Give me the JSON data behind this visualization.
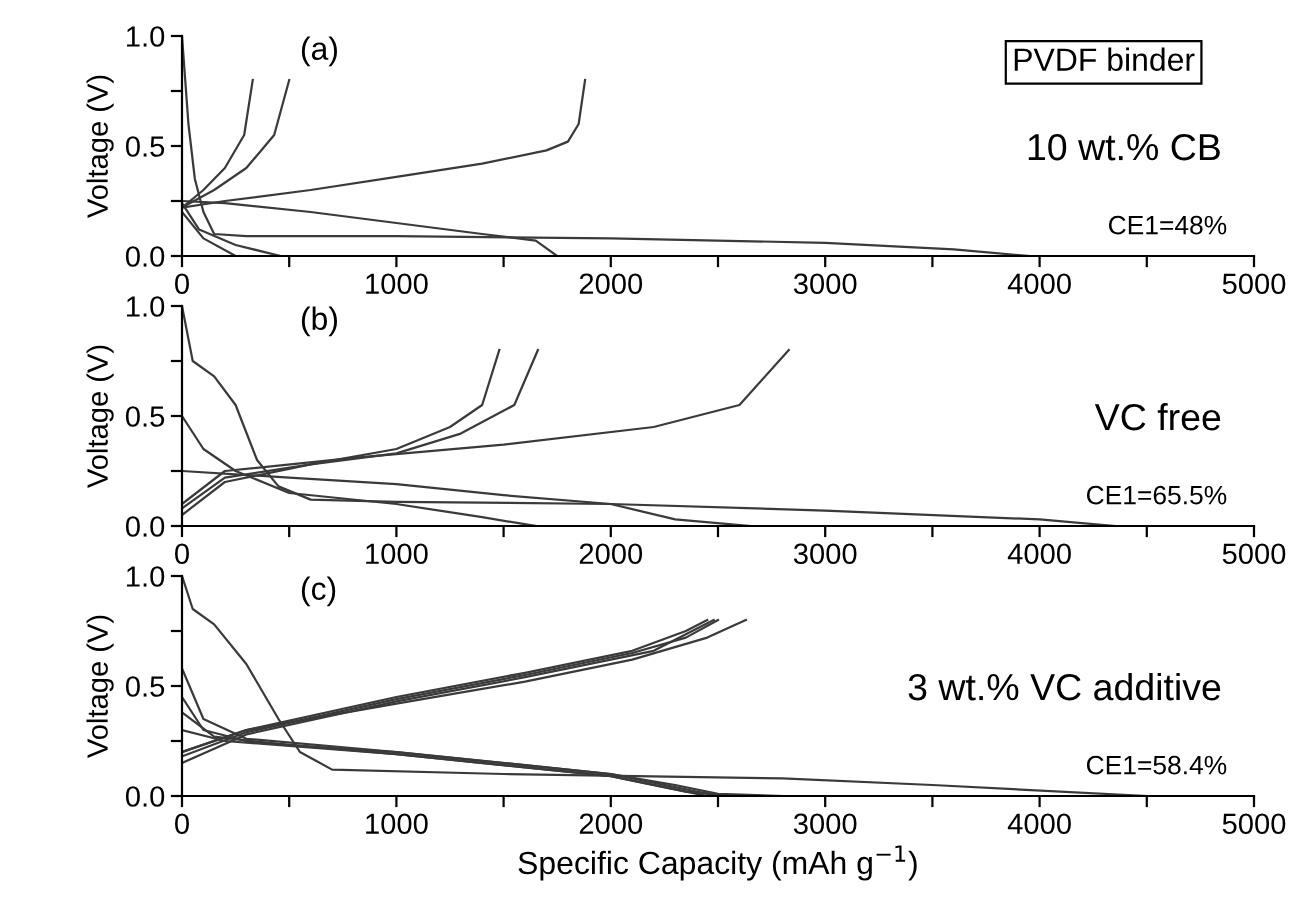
{
  "chart_data": [
    {
      "type": "line",
      "title": "PVDF binder",
      "ylabel": "Voltage (V)",
      "color": "#3a3a3a",
      "xlim": [
        0,
        5000
      ],
      "ylim": [
        0,
        1.0
      ],
      "xticks": [
        0,
        {
          "value": 500,
          "label": null
        },
        1000,
        {
          "value": 1500,
          "label": null
        },
        2000,
        {
          "value": 2500,
          "label": null
        },
        3000,
        {
          "value": 3500,
          "label": null
        },
        4000,
        {
          "value": 4500,
          "label": null
        },
        5000
      ],
      "yticks": [
        {
          "value": 0,
          "label": "0.0"
        },
        {
          "value": 0.25,
          "label": null
        },
        {
          "value": 0.5,
          "label": "0.5"
        },
        {
          "value": 0.75,
          "label": null
        },
        {
          "value": 1,
          "label": "1.0"
        }
      ],
      "grid": false,
      "legend": false,
      "annotations": [
        "(a)",
        "10 wt.% CB",
        "CE1=48%"
      ],
      "series": [
        {
          "x": [
            0,
            30,
            60,
            100,
            150,
            300,
            1000,
            2000,
            3000,
            3600,
            3950
          ],
          "values": [
            1.0,
            0.6,
            0.35,
            0.2,
            0.1,
            0.09,
            0.09,
            0.08,
            0.06,
            0.03,
            0.0
          ]
        },
        {
          "x": [
            0,
            200,
            600,
            1000,
            1400,
            1700,
            1800,
            1850,
            1880
          ],
          "values": [
            0.22,
            0.25,
            0.3,
            0.36,
            0.42,
            0.48,
            0.52,
            0.6,
            0.8
          ]
        },
        {
          "x": [
            0,
            200,
            600,
            1000,
            1400,
            1650,
            1750
          ],
          "values": [
            0.25,
            0.24,
            0.2,
            0.15,
            0.1,
            0.07,
            0.0
          ]
        },
        {
          "x": [
            0,
            150,
            300,
            430,
            500
          ],
          "values": [
            0.22,
            0.3,
            0.4,
            0.55,
            0.8
          ]
        },
        {
          "x": [
            0,
            80,
            250,
            460
          ],
          "values": [
            0.24,
            0.12,
            0.05,
            0.0
          ]
        },
        {
          "x": [
            0,
            100,
            200,
            290,
            330
          ],
          "values": [
            0.22,
            0.3,
            0.4,
            0.55,
            0.8
          ]
        },
        {
          "x": [
            0,
            100,
            250
          ],
          "values": [
            0.2,
            0.08,
            0.0
          ]
        }
      ]
    },
    {
      "type": "line",
      "ylabel": "Voltage (V)",
      "color": "#3a3a3a",
      "xlim": [
        0,
        5000
      ],
      "ylim": [
        0,
        1.0
      ],
      "xticks": [
        0,
        {
          "value": 500,
          "label": null
        },
        1000,
        {
          "value": 1500,
          "label": null
        },
        2000,
        {
          "value": 2500,
          "label": null
        },
        3000,
        {
          "value": 3500,
          "label": null
        },
        4000,
        {
          "value": 4500,
          "label": null
        },
        5000
      ],
      "yticks": [
        {
          "value": 0,
          "label": "0.0"
        },
        {
          "value": 0.25,
          "label": null
        },
        {
          "value": 0.5,
          "label": "0.5"
        },
        {
          "value": 0.75,
          "label": null
        },
        {
          "value": 1,
          "label": "1.0"
        }
      ],
      "grid": false,
      "legend": false,
      "annotations": [
        "(b)",
        "VC free",
        "CE1=65.5%"
      ],
      "series": [
        {
          "x": [
            0,
            50,
            150,
            250,
            350,
            450,
            600,
            1000,
            2000,
            3000,
            4000,
            4350
          ],
          "values": [
            1.0,
            0.75,
            0.68,
            0.55,
            0.3,
            0.18,
            0.12,
            0.11,
            0.1,
            0.07,
            0.03,
            0.0
          ]
        },
        {
          "x": [
            0,
            200,
            800,
            1500,
            2200,
            2600,
            2830
          ],
          "values": [
            0.1,
            0.25,
            0.31,
            0.37,
            0.45,
            0.55,
            0.8
          ]
        },
        {
          "x": [
            0,
            500,
            1000,
            1500,
            2000,
            2300,
            2650
          ],
          "values": [
            0.25,
            0.22,
            0.19,
            0.14,
            0.1,
            0.03,
            0.0
          ]
        },
        {
          "x": [
            0,
            200,
            600,
            1000,
            1300,
            1550,
            1660
          ],
          "values": [
            0.08,
            0.22,
            0.28,
            0.33,
            0.42,
            0.55,
            0.8
          ]
        },
        {
          "x": [
            0,
            100,
            250,
            500,
            1000,
            1400,
            1650
          ],
          "values": [
            0.5,
            0.35,
            0.25,
            0.15,
            0.1,
            0.04,
            0.0
          ]
        },
        {
          "x": [
            0,
            200,
            600,
            1000,
            1250,
            1400,
            1480
          ],
          "values": [
            0.05,
            0.2,
            0.28,
            0.35,
            0.45,
            0.55,
            0.8
          ]
        }
      ]
    },
    {
      "type": "line",
      "ylabel": "Voltage (V)",
      "xlabel": "Specific Capacity (mAh g$^{−1}$)",
      "color": "#3a3a3a",
      "xlim": [
        0,
        5000
      ],
      "ylim": [
        0,
        1.0
      ],
      "xticks": [
        0,
        {
          "value": 500,
          "label": null
        },
        1000,
        {
          "value": 1500,
          "label": null
        },
        2000,
        {
          "value": 2500,
          "label": null
        },
        3000,
        {
          "value": 3500,
          "label": null
        },
        4000,
        {
          "value": 4500,
          "label": null
        },
        5000
      ],
      "yticks": [
        {
          "value": 0,
          "label": "0.0"
        },
        {
          "value": 0.25,
          "label": null
        },
        {
          "value": 0.5,
          "label": "0.5"
        },
        {
          "value": 0.75,
          "label": null
        },
        {
          "value": 1,
          "label": "1.0"
        }
      ],
      "grid": false,
      "legend": false,
      "annotations": [
        "(c)",
        "3 wt.% VC additive",
        "CE1=58.4%"
      ],
      "series": [
        {
          "x": [
            0,
            50,
            150,
            300,
            450,
            550,
            700,
            1500,
            2800,
            3500,
            4500
          ],
          "values": [
            1.0,
            0.85,
            0.78,
            0.6,
            0.35,
            0.2,
            0.12,
            0.1,
            0.08,
            0.05,
            0.0
          ]
        },
        {
          "x": [
            0,
            300,
            1000,
            1600,
            2100,
            2450,
            2630
          ],
          "values": [
            0.2,
            0.3,
            0.42,
            0.52,
            0.62,
            0.72,
            0.8
          ]
        },
        {
          "x": [
            0,
            300,
            1000,
            1600,
            2100,
            2350,
            2500
          ],
          "values": [
            0.18,
            0.29,
            0.44,
            0.55,
            0.65,
            0.72,
            0.8
          ]
        },
        {
          "x": [
            0,
            300,
            1000,
            1600,
            2100,
            2350,
            2450
          ],
          "values": [
            0.2,
            0.3,
            0.45,
            0.56,
            0.66,
            0.75,
            0.8
          ]
        },
        {
          "x": [
            0,
            300,
            1000,
            1600,
            2200,
            2400,
            2480
          ],
          "values": [
            0.15,
            0.28,
            0.43,
            0.54,
            0.66,
            0.76,
            0.8
          ]
        },
        {
          "x": [
            0,
            100,
            300,
            1000,
            1500,
            2000,
            2300,
            2500,
            2800
          ],
          "values": [
            0.58,
            0.35,
            0.26,
            0.2,
            0.15,
            0.1,
            0.05,
            0.01,
            0.0
          ]
        },
        {
          "x": [
            0,
            100,
            300,
            1000,
            2000,
            2300,
            2450
          ],
          "values": [
            0.45,
            0.3,
            0.25,
            0.19,
            0.09,
            0.03,
            0.0
          ]
        },
        {
          "x": [
            0,
            150,
            500,
            1000,
            2000,
            2300,
            2500
          ],
          "values": [
            0.38,
            0.27,
            0.23,
            0.2,
            0.1,
            0.04,
            0.0
          ]
        },
        {
          "x": [
            0,
            200,
            1000,
            2000,
            2350,
            2600
          ],
          "values": [
            0.3,
            0.25,
            0.19,
            0.09,
            0.02,
            0.0
          ]
        }
      ]
    }
  ]
}
